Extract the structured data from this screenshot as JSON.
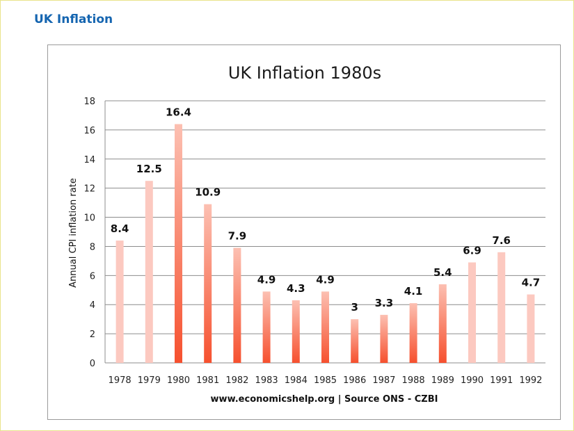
{
  "page": {
    "heading": "UK Inflation"
  },
  "chart_data": {
    "type": "bar",
    "title": "UK Inflation 1980s",
    "xlabel": "",
    "ylabel": "Annual CPI inflation rate",
    "source_note": "www.economicshelp.org | Source ONS - CZBI",
    "categories": [
      "1978",
      "1979",
      "1980",
      "1981",
      "1982",
      "1983",
      "1984",
      "1985",
      "1986",
      "1987",
      "1988",
      "1989",
      "1990",
      "1991",
      "1992"
    ],
    "values": [
      8.4,
      12.5,
      16.4,
      10.9,
      7.9,
      4.9,
      4.3,
      4.9,
      3,
      3.3,
      4.1,
      5.4,
      6.9,
      7.6,
      4.7
    ],
    "data_labels": [
      "8.4",
      "12.5",
      "16.4",
      "10.9",
      "7.9",
      "4.9",
      "4.3",
      "4.9",
      "3",
      "3.3",
      "4.1",
      "5.4",
      "6.9",
      "7.6",
      "4.7"
    ],
    "ylim": [
      0,
      18
    ],
    "yticks": [
      0,
      2,
      4,
      6,
      8,
      10,
      12,
      14,
      16,
      18
    ],
    "grid": true,
    "legend": "none",
    "bar_styles": [
      "light",
      "light",
      "dark",
      "dark",
      "dark",
      "dark",
      "dark",
      "dark",
      "dark",
      "dark",
      "dark",
      "dark",
      "light",
      "light",
      "light"
    ],
    "colors": {
      "light_top": "#fcc9c0",
      "light_bottom": "#fcc9c0",
      "dark_top": "#fcc0b2",
      "dark_bottom": "#f6502e",
      "grid": "#8c8c8c",
      "heading": "#1565b0"
    }
  }
}
